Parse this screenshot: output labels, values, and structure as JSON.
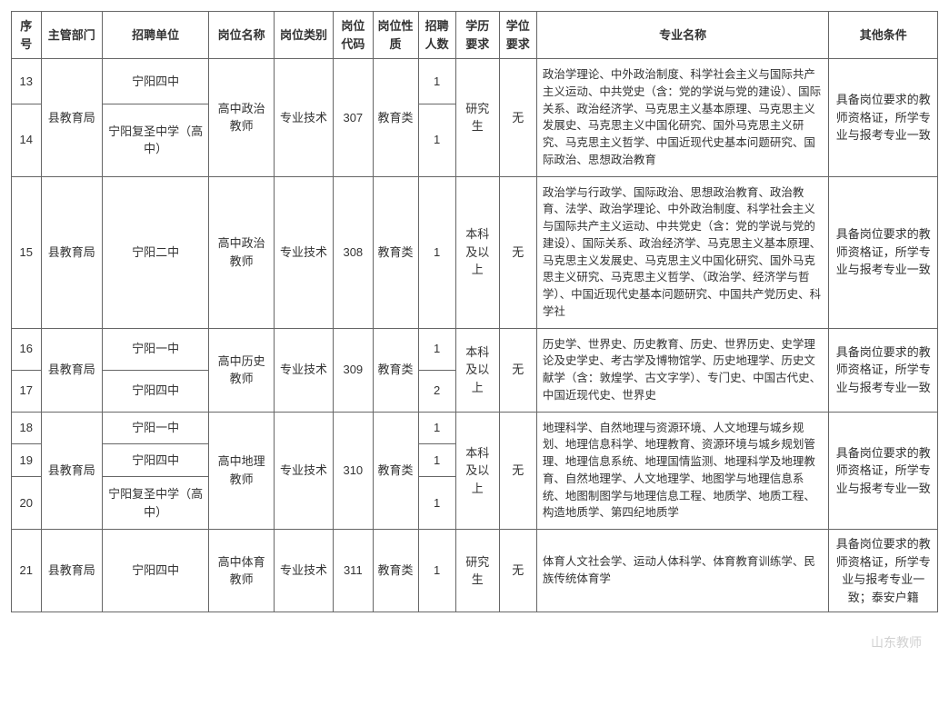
{
  "headers": {
    "seq": "序号",
    "dept": "主管部门",
    "unit": "招聘单位",
    "position": "岗位名称",
    "category": "岗位类别",
    "code": "岗位代码",
    "nature": "岗位性质",
    "count": "招聘人数",
    "education": "学历要求",
    "degree": "学位要求",
    "major": "专业名称",
    "other": "其他条件"
  },
  "common": {
    "dept": "县教育局",
    "category": "专业技术",
    "nature": "教育类",
    "degree_none": "无",
    "other_std": "具备岗位要求的教师资格证，所学专业与报考专业一致",
    "other_last": "具备岗位要求的教师资格证，所学专业与报考专业一致；泰安户籍"
  },
  "groups": {
    "g307": {
      "position": "高中政治教师",
      "code": "307",
      "education": "研究生",
      "major": "政治学理论、中外政治制度、科学社会主义与国际共产主义运动、中共党史（含：党的学说与党的建设）、国际关系、政治经济学、马克思主义基本原理、马克思主义发展史、马克思主义中国化研究、国外马克思主义研究、马克思主义哲学、中国近现代史基本问题研究、国际政治、思想政治教育",
      "rows": [
        {
          "seq": "13",
          "unit": "宁阳四中",
          "count": "1"
        },
        {
          "seq": "14",
          "unit": "宁阳复圣中学（高中）",
          "count": "1"
        }
      ]
    },
    "g308": {
      "position": "高中政治教师",
      "code": "308",
      "education": "本科及以上",
      "major": "政治学与行政学、国际政治、思想政治教育、政治教育、法学、政治学理论、中外政治制度、科学社会主义与国际共产主义运动、中共党史（含：党的学说与党的建设）、国际关系、政治经济学、马克思主义基本原理、马克思主义发展史、马克思主义中国化研究、国外马克思主义研究、马克思主义哲学、（政治学、经济学与哲学）、中国近现代史基本问题研究、中国共产党历史、科学社",
      "rows": [
        {
          "seq": "15",
          "unit": "宁阳二中",
          "count": "1"
        }
      ]
    },
    "g309": {
      "position": "高中历史教师",
      "code": "309",
      "education": "本科及以上",
      "major": "历史学、世界史、历史教育、历史、世界历史、史学理论及史学史、考古学及博物馆学、历史地理学、历史文献学（含：敦煌学、古文字学）、专门史、中国古代史、中国近现代史、世界史",
      "rows": [
        {
          "seq": "16",
          "unit": "宁阳一中",
          "count": "1"
        },
        {
          "seq": "17",
          "unit": "宁阳四中",
          "count": "2"
        }
      ]
    },
    "g310": {
      "position": "高中地理教师",
      "code": "310",
      "education": "本科及以上",
      "major": "地理科学、自然地理与资源环境、人文地理与城乡规划、地理信息科学、地理教育、资源环境与城乡规划管理、地理信息系统、地理国情监测、地理科学及地理教育、自然地理学、人文地理学、地图学与地理信息系统、地图制图学与地理信息工程、地质学、地质工程、构造地质学、第四纪地质学",
      "rows": [
        {
          "seq": "18",
          "unit": "宁阳一中",
          "count": "1"
        },
        {
          "seq": "19",
          "unit": "宁阳四中",
          "count": "1"
        },
        {
          "seq": "20",
          "unit": "宁阳复圣中学（高中）",
          "count": "1"
        }
      ]
    },
    "g311": {
      "position": "高中体育教师",
      "code": "311",
      "education": "研究生",
      "major": "体育人文社会学、运动人体科学、体育教育训练学、民族传统体育学",
      "rows": [
        {
          "seq": "21",
          "unit": "宁阳四中",
          "count": "1"
        }
      ]
    }
  },
  "watermark": "山东教师"
}
